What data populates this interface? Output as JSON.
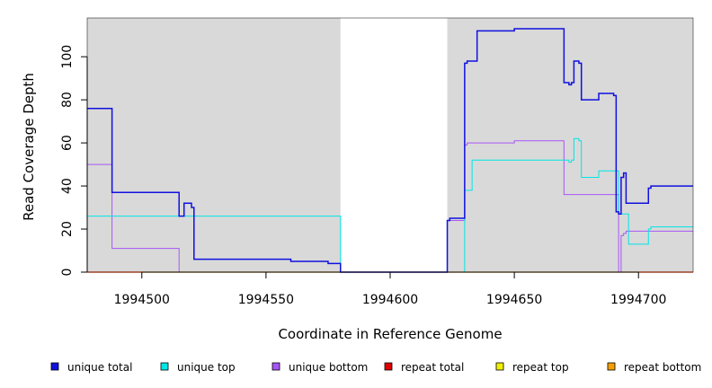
{
  "chart_data": {
    "type": "line",
    "title": "",
    "xlabel": "Coordinate in Reference Genome",
    "ylabel": "Read Coverage Depth",
    "xlim": [
      1994478,
      1994722
    ],
    "ylim": [
      0,
      118
    ],
    "x_ticks": [
      1994500,
      1994550,
      1994600,
      1994650,
      1994700
    ],
    "x_tick_labels": [
      "1994500",
      "1994550",
      "1994600",
      "1994650",
      "1994700"
    ],
    "y_ticks": [
      0,
      20,
      40,
      60,
      80,
      100
    ],
    "y_tick_labels": [
      "0",
      "20",
      "40",
      "60",
      "80",
      "100"
    ],
    "shaded_regions": [
      {
        "x0": 1994478,
        "x1": 1994580,
        "color": "#d9d9d9"
      },
      {
        "x0": 1994623,
        "x1": 1994722,
        "color": "#d9d9d9"
      }
    ],
    "legend_position": "bottom",
    "series": [
      {
        "name": "unique total",
        "color": "#1010e0",
        "width": 1.5,
        "x": [
          1994478,
          1994488,
          1994515,
          1994517,
          1994520,
          1994521,
          1994560,
          1994575,
          1994580,
          1994623,
          1994624,
          1994630,
          1994631,
          1994632,
          1994633,
          1994635,
          1994650,
          1994670,
          1994672,
          1994673,
          1994674,
          1994676,
          1994677,
          1994684,
          1994690,
          1994691,
          1994692,
          1994693,
          1994694,
          1994695,
          1994704,
          1994705,
          1994722
        ],
        "y": [
          76,
          37,
          26,
          32,
          30,
          6,
          5,
          4,
          0,
          24,
          25,
          97,
          98,
          98,
          98,
          112,
          113,
          88,
          87,
          88,
          98,
          97,
          80,
          83,
          82,
          28,
          27,
          44,
          46,
          32,
          39,
          40,
          40
        ]
      },
      {
        "name": "unique top",
        "color": "#00e6e6",
        "width": 1,
        "x": [
          1994478,
          1994515,
          1994580,
          1994630,
          1994631,
          1994633,
          1994672,
          1994673,
          1994674,
          1994676,
          1994677,
          1994684,
          1994690,
          1994692,
          1994694,
          1994696,
          1994704,
          1994705,
          1994722
        ],
        "y": [
          26,
          26,
          0,
          38,
          38,
          52,
          51,
          52,
          62,
          61,
          44,
          47,
          47,
          27,
          27,
          13,
          20,
          21,
          21
        ],
        "draw_from": 1
      },
      {
        "name": "unique bottom",
        "color": "#a855f7",
        "width": 1,
        "x": [
          1994478,
          1994488,
          1994515,
          1994623,
          1994624,
          1994630,
          1994631,
          1994650,
          1994670,
          1994692,
          1994693,
          1994694,
          1994695,
          1994722
        ],
        "y": [
          50,
          11,
          0,
          24,
          24,
          59,
          60,
          61,
          36,
          0,
          17,
          18,
          19,
          19
        ]
      },
      {
        "name": "repeat total",
        "color": "#e00000",
        "width": 1,
        "x": [
          1994478,
          1994722
        ],
        "y": [
          0,
          0
        ]
      },
      {
        "name": "repeat top",
        "color": "#f0f000",
        "width": 1,
        "x": [
          1994478,
          1994722
        ],
        "y": [
          0,
          0
        ]
      },
      {
        "name": "repeat bottom",
        "color": "#f5a000",
        "width": 1.2,
        "x": [
          1994478,
          1994722
        ],
        "y": [
          0,
          0
        ]
      }
    ]
  }
}
